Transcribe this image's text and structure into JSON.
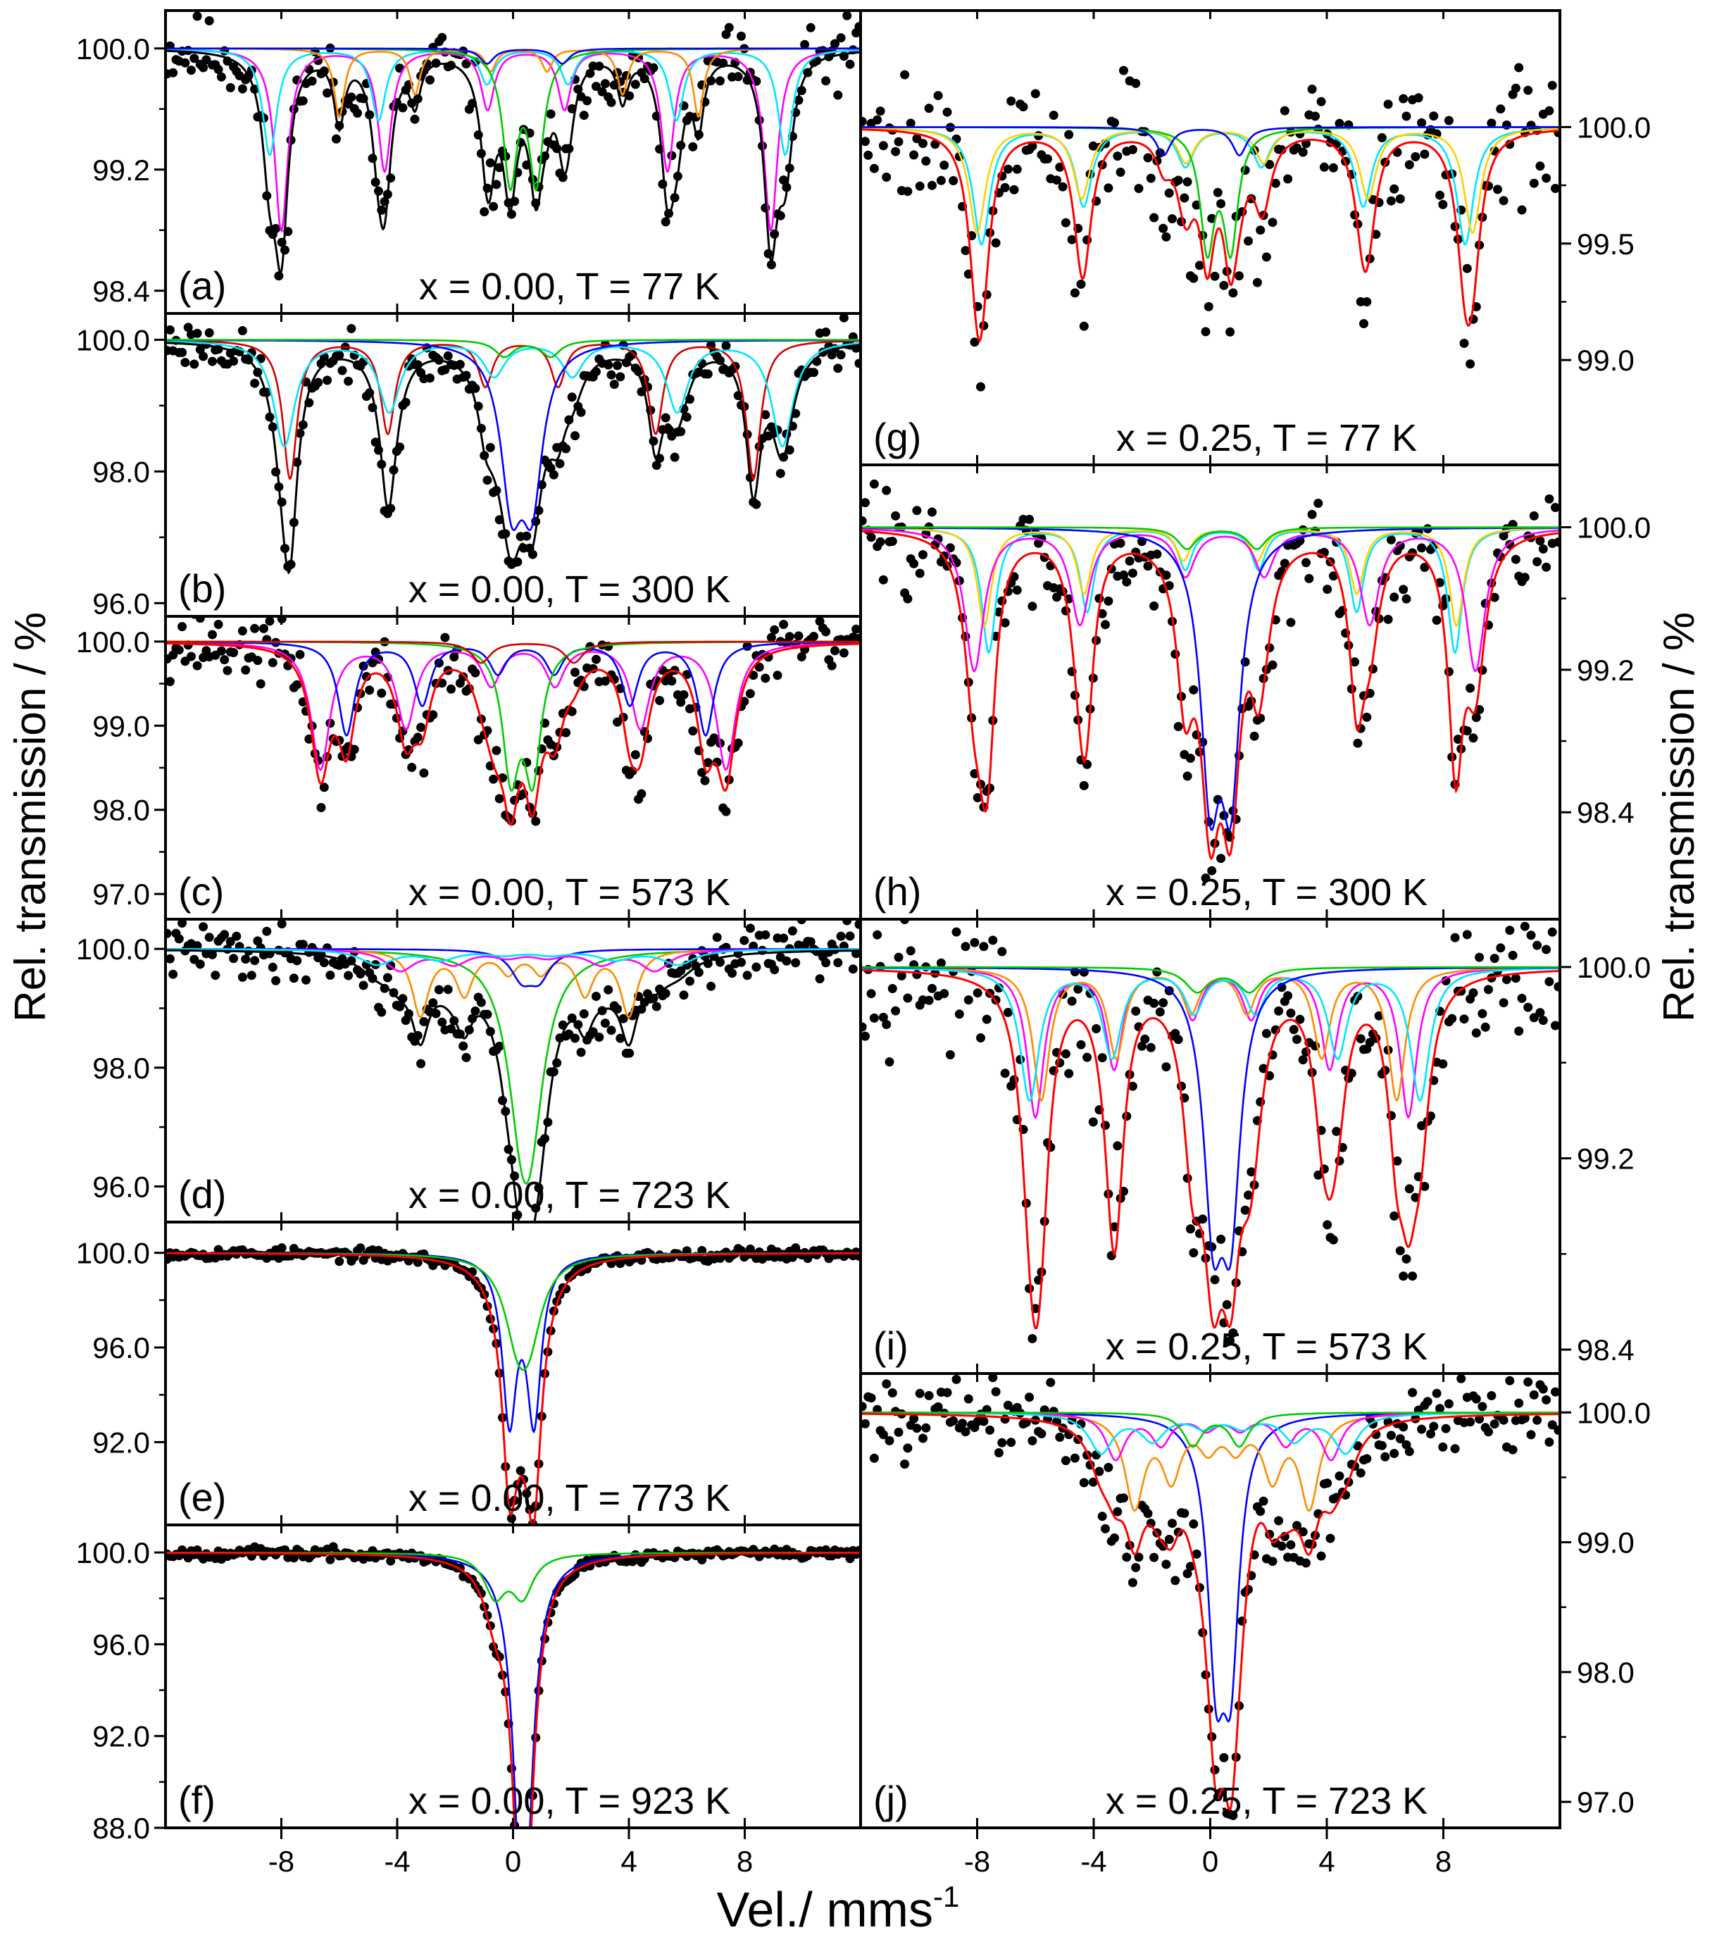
{
  "figure": {
    "y_axis_title_left": "Rel. transmission / %",
    "y_axis_title_right": "Rel. transmission / %",
    "x_axis_title_main": "Vel./ mms",
    "x_axis_title_sup": "-1"
  },
  "chart_data": [
    {
      "id": "a",
      "type": "scatter",
      "tag": "(a)",
      "title": "x = 0.00, T = 77 K",
      "xlabel": "Vel./ mms-1",
      "ylabel": "Rel. transmission / %",
      "xlim": [
        -12,
        12
      ],
      "ylim": [
        98.25,
        100.25
      ],
      "yticks": [
        100.0,
        99.2,
        98.4
      ],
      "ytick_labels": [
        "100.0",
        "99.2",
        "98.4"
      ],
      "xticks": [
        -8,
        -4,
        0,
        4,
        8
      ],
      "xtick_labels": [
        "-8",
        "-4",
        "0",
        "4",
        "8"
      ],
      "noise": 0.12,
      "envelope_color": "#000000",
      "seed": 11,
      "subspectra": [
        {
          "color": "#ff00ff",
          "kind": "sextet",
          "center": 0.45,
          "split": 8.45,
          "depth": 1.2,
          "width": 0.28
        },
        {
          "color": "#00e5ff",
          "kind": "sextet",
          "center": 0.5,
          "split": 8.9,
          "depth": 0.7,
          "width": 0.3
        },
        {
          "color": "#ff8c00",
          "kind": "sextet",
          "center": 0.2,
          "split": 6.2,
          "depth": 0.45,
          "width": 0.22
        },
        {
          "color": "#00cc00",
          "kind": "doublet",
          "center": 0.35,
          "split": 0.9,
          "depth": 0.85,
          "width": 0.3
        },
        {
          "color": "#0000ff",
          "kind": "doublet",
          "center": 0.4,
          "split": 2.6,
          "depth": 0.1,
          "width": 0.3
        }
      ]
    },
    {
      "id": "b",
      "type": "scatter",
      "tag": "(b)",
      "title": "x = 0.00, T = 300 K",
      "xlabel": "Vel./ mms-1",
      "ylabel": "Rel. transmission / %",
      "xlim": [
        -12,
        12
      ],
      "ylim": [
        95.8,
        100.4
      ],
      "yticks": [
        100.0,
        98.0,
        96.0
      ],
      "ytick_labels": [
        "100.0",
        "98.0",
        "96.0"
      ],
      "xticks": [
        -8,
        -4,
        0,
        4,
        8
      ],
      "xtick_labels": [
        "-8",
        "-4",
        "0",
        "4",
        "8"
      ],
      "noise": 0.18,
      "envelope_color": "#000000",
      "seed": 23,
      "subspectra": [
        {
          "color": "#d40000",
          "kind": "sextet",
          "center": 0.3,
          "split": 8.0,
          "depth": 2.1,
          "width": 0.3
        },
        {
          "color": "#00e5ff",
          "kind": "sextet",
          "center": 0.7,
          "split": 8.6,
          "depth": 1.6,
          "width": 0.45
        },
        {
          "color": "#0000ff",
          "kind": "doublet",
          "center": 0.3,
          "split": 0.7,
          "depth": 2.2,
          "width": 0.45
        },
        {
          "color": "#00cc00",
          "kind": "doublet",
          "center": 0.5,
          "split": 1.6,
          "depth": 0.25,
          "width": 0.4
        }
      ]
    },
    {
      "id": "c",
      "type": "scatter",
      "tag": "(c)",
      "title": "x = 0.00, T = 573 K",
      "xlabel": "Vel./ mms-1",
      "ylabel": "Rel. transmission / %",
      "xlim": [
        -12,
        12
      ],
      "ylim": [
        96.7,
        100.3
      ],
      "yticks": [
        100.0,
        99.0,
        98.0,
        97.0
      ],
      "ytick_labels": [
        "100.0",
        "99.0",
        "98.0",
        "97.0"
      ],
      "xticks": [
        -8,
        -4,
        0,
        4,
        8
      ],
      "xtick_labels": [
        "-8",
        "-4",
        "0",
        "4",
        "8"
      ],
      "noise": 0.2,
      "envelope_color": "#ff0000",
      "seed": 37,
      "subspectra": [
        {
          "color": "#ff00ff",
          "kind": "sextet",
          "center": 0.35,
          "split": 7.0,
          "depth": 1.5,
          "width": 0.4
        },
        {
          "color": "#0000ff",
          "kind": "sextet",
          "center": 0.45,
          "split": 6.2,
          "depth": 1.1,
          "width": 0.35
        },
        {
          "color": "#00cc00",
          "kind": "doublet",
          "center": 0.3,
          "split": 0.75,
          "depth": 1.5,
          "width": 0.35
        },
        {
          "color": "#d40000",
          "kind": "doublet",
          "center": 0.5,
          "split": 3.2,
          "depth": 0.25,
          "width": 0.4
        }
      ]
    },
    {
      "id": "d",
      "type": "scatter",
      "tag": "(d)",
      "title": "x = 0.00, T = 723 K",
      "xlabel": "Vel./ mms-1",
      "ylabel": "Rel. transmission / %",
      "xlim": [
        -12,
        12
      ],
      "ylim": [
        95.4,
        100.5
      ],
      "yticks": [
        100.0,
        98.0,
        96.0
      ],
      "ytick_labels": [
        "100.0",
        "98.0",
        "96.0"
      ],
      "xticks": [
        -8,
        -4,
        0,
        4,
        8
      ],
      "xtick_labels": [
        "-8",
        "-4",
        "0",
        "4",
        "8"
      ],
      "noise": 0.22,
      "envelope_color": "#000000",
      "seed": 41,
      "subspectra": [
        {
          "color": "#00cc00",
          "kind": "doublet",
          "center": 0.45,
          "split": 0.3,
          "depth": 2.1,
          "width": 0.6
        },
        {
          "color": "#ff8c00",
          "kind": "sextet",
          "center": 0.4,
          "split": 3.6,
          "depth": 1.1,
          "width": 0.35
        },
        {
          "color": "#0000ff",
          "kind": "doublet",
          "center": 0.6,
          "split": 0.6,
          "depth": 0.45,
          "width": 0.45
        },
        {
          "color": "#ff00ff",
          "kind": "sextet",
          "center": 0.5,
          "split": 4.4,
          "depth": 0.35,
          "width": 0.6
        },
        {
          "color": "#00e5ff",
          "kind": "sextet",
          "center": 0.5,
          "split": 5.2,
          "depth": 0.25,
          "width": 0.7
        }
      ]
    },
    {
      "id": "e",
      "type": "scatter",
      "tag": "(e)",
      "title": "x = 0.00, T = 773 K",
      "xlabel": "Vel./ mms-1",
      "ylabel": "Rel. transmission / %",
      "xlim": [
        -12,
        12
      ],
      "ylim": [
        88.5,
        101.3
      ],
      "yticks": [
        100.0,
        96.0,
        92.0
      ],
      "ytick_labels": [
        "100.0",
        "96.0",
        "92.0"
      ],
      "xticks": [
        -8,
        -4,
        0,
        4,
        8
      ],
      "xtick_labels": [
        "-8",
        "-4",
        "0",
        "4",
        "8"
      ],
      "noise": 0.12,
      "envelope_color": "#ff0000",
      "seed": 53,
      "subspectra": [
        {
          "color": "#0000ff",
          "kind": "doublet",
          "center": 0.3,
          "split": 0.85,
          "depth": 6.8,
          "width": 0.3
        },
        {
          "color": "#00cc00",
          "kind": "doublet",
          "center": 0.35,
          "split": 0.4,
          "depth": 2.8,
          "width": 0.55
        }
      ]
    },
    {
      "id": "f",
      "type": "scatter",
      "tag": "(f)",
      "title": "x = 0.00, T = 923 K",
      "xlabel": "Vel./ mms-1",
      "ylabel": "Rel. transmission / %",
      "xlim": [
        -12,
        12
      ],
      "ylim": [
        88.0,
        101.2
      ],
      "yticks": [
        100.0,
        96.0,
        92.0,
        88.0
      ],
      "ytick_labels": [
        "100.0",
        "96.0",
        "92.0",
        "88.0"
      ],
      "xticks": [
        -8,
        -4,
        0,
        4,
        8
      ],
      "xtick_labels": [
        "-8",
        "-4",
        "0",
        "4",
        "8"
      ],
      "noise": 0.12,
      "envelope_color": "#ff0000",
      "seed": 67,
      "subspectra": [
        {
          "color": "#0000ff",
          "kind": "doublet",
          "center": 0.35,
          "split": 0.12,
          "depth": 8.6,
          "width": 0.35
        },
        {
          "color": "#00cc00",
          "kind": "doublet",
          "center": -0.15,
          "split": 0.95,
          "depth": 1.8,
          "width": 0.45
        }
      ]
    },
    {
      "id": "g",
      "type": "scatter",
      "tag": "(g)",
      "title": "x = 0.25, T = 77 K",
      "xlabel": "Vel./ mms-1",
      "ylabel": "Rel. transmission / %",
      "xlim": [
        -12,
        12
      ],
      "ylim": [
        98.55,
        100.5
      ],
      "yticks": [
        100.0,
        99.5,
        99.0
      ],
      "ytick_labels": [
        "100.0",
        "99.5",
        "99.0"
      ],
      "xticks": [
        -8,
        -4,
        0,
        4,
        8
      ],
      "xtick_labels": [
        "-8",
        "-4",
        "0",
        "4",
        "8"
      ],
      "noise": 0.14,
      "envelope_color": "#ff0000",
      "seed": 79,
      "subspectra": [
        {
          "color": "#00e5ff",
          "kind": "sextet",
          "center": 0.45,
          "split": 8.3,
          "depth": 0.5,
          "width": 0.35
        },
        {
          "color": "#ffd000",
          "kind": "sextet",
          "center": 0.5,
          "split": 8.5,
          "depth": 0.45,
          "width": 0.35
        },
        {
          "color": "#00cc00",
          "kind": "doublet",
          "center": 0.3,
          "split": 0.8,
          "depth": 0.5,
          "width": 0.3
        },
        {
          "color": "#0000ff",
          "kind": "doublet",
          "center": -0.3,
          "split": 2.6,
          "depth": 0.12,
          "width": 0.3
        }
      ]
    },
    {
      "id": "h",
      "type": "scatter",
      "tag": "(h)",
      "title": "x = 0.25, T = 300 K",
      "xlabel": "Vel./ mms-1",
      "ylabel": "Rel. transmission / %",
      "xlim": [
        -12,
        12
      ],
      "ylim": [
        97.8,
        100.35
      ],
      "yticks": [
        100.0,
        99.2,
        98.4
      ],
      "ytick_labels": [
        "100.0",
        "99.2",
        "98.4"
      ],
      "xticks": [
        -8,
        -4,
        0,
        4,
        8
      ],
      "xtick_labels": [
        "-8",
        "-4",
        "0",
        "4",
        "8"
      ],
      "noise": 0.13,
      "envelope_color": "#ff0000",
      "seed": 83,
      "subspectra": [
        {
          "color": "#00e5ff",
          "kind": "sextet",
          "center": 0.4,
          "split": 8.0,
          "depth": 0.7,
          "width": 0.3
        },
        {
          "color": "#ffd000",
          "kind": "sextet",
          "center": 0.35,
          "split": 8.1,
          "depth": 0.55,
          "width": 0.3
        },
        {
          "color": "#ff00ff",
          "kind": "sextet",
          "center": 0.5,
          "split": 8.6,
          "depth": 0.8,
          "width": 0.4
        },
        {
          "color": "#0000ff",
          "kind": "doublet",
          "center": 0.35,
          "split": 0.7,
          "depth": 1.35,
          "width": 0.4
        },
        {
          "color": "#00cc00",
          "kind": "doublet",
          "center": 0.4,
          "split": 2.4,
          "depth": 0.12,
          "width": 0.4
        }
      ]
    },
    {
      "id": "i",
      "type": "scatter",
      "tag": "(i)",
      "title": "x = 0.25, T = 573 K",
      "xlabel": "Vel./ mms-1",
      "ylabel": "Rel. transmission / %",
      "xlim": [
        -12,
        12
      ],
      "ylim": [
        98.3,
        100.2
      ],
      "yticks": [
        100.0,
        99.2,
        98.4
      ],
      "ytick_labels": [
        "100.0",
        "99.2",
        "98.4"
      ],
      "xticks": [
        -8,
        -4,
        0,
        4,
        8
      ],
      "xtick_labels": [
        "-8",
        "-4",
        "0",
        "4",
        "8"
      ],
      "noise": 0.13,
      "envelope_color": "#ff0000",
      "seed": 97,
      "subspectra": [
        {
          "color": "#ff00ff",
          "kind": "sextet",
          "center": 0.4,
          "split": 6.4,
          "depth": 0.62,
          "width": 0.35
        },
        {
          "color": "#ff8c00",
          "kind": "sextet",
          "center": 0.3,
          "split": 6.1,
          "depth": 0.55,
          "width": 0.35
        },
        {
          "color": "#00e5ff",
          "kind": "sextet",
          "center": 0.5,
          "split": 6.7,
          "depth": 0.55,
          "width": 0.4
        },
        {
          "color": "#0000ff",
          "kind": "doublet",
          "center": 0.4,
          "split": 0.6,
          "depth": 0.95,
          "width": 0.4
        },
        {
          "color": "#00cc00",
          "kind": "doublet",
          "center": 0.45,
          "split": 1.8,
          "depth": 0.1,
          "width": 0.5
        }
      ]
    },
    {
      "id": "j",
      "type": "scatter",
      "tag": "(j)",
      "title": "x = 0.25, T = 723 K",
      "xlabel": "Vel./ mms-1",
      "ylabel": "Rel. transmission / %",
      "xlim": [
        -12,
        12
      ],
      "ylim": [
        96.8,
        100.3
      ],
      "yticks": [
        100.0,
        99.0,
        98.0,
        97.0
      ],
      "ytick_labels": [
        "100.0",
        "99.0",
        "98.0",
        "97.0"
      ],
      "xticks": [
        -8,
        -4,
        0,
        4,
        8
      ],
      "xtick_labels": [
        "-8",
        "-4",
        "0",
        "4",
        "8"
      ],
      "noise": 0.15,
      "envelope_color": "#ff0000",
      "seed": 101,
      "subspectra": [
        {
          "color": "#0000ff",
          "kind": "doublet",
          "center": 0.45,
          "split": 0.5,
          "depth": 1.75,
          "width": 0.35
        },
        {
          "color": "#ff8c00",
          "kind": "sextet",
          "center": 0.4,
          "split": 3.0,
          "depth": 0.7,
          "width": 0.4
        },
        {
          "color": "#ff00ff",
          "kind": "sextet",
          "center": 0.45,
          "split": 3.7,
          "depth": 0.35,
          "width": 0.4
        },
        {
          "color": "#00e5ff",
          "kind": "sextet",
          "center": 0.45,
          "split": 4.2,
          "depth": 0.3,
          "width": 0.5
        },
        {
          "color": "#00cc00",
          "kind": "doublet",
          "center": 0.2,
          "split": 1.6,
          "depth": 0.25,
          "width": 0.4
        }
      ]
    }
  ]
}
